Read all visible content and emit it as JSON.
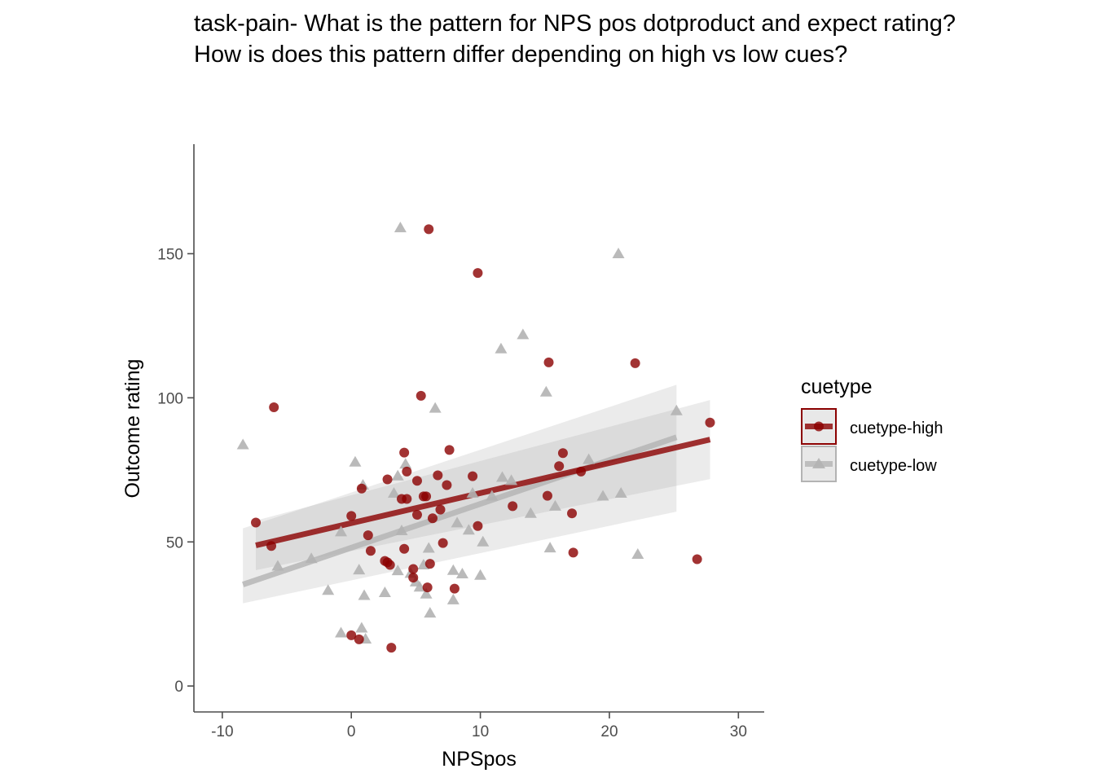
{
  "chart_data": {
    "type": "scatter",
    "title_lines": [
      "task-pain- What is the pattern for NPS pos dotproduct and expect rating?",
      "How is does this pattern differ depending on high vs low cues?"
    ],
    "xlabel": "NPSpos",
    "ylabel": "Outcome rating",
    "xlim": [
      -12.2,
      32.0
    ],
    "ylim": [
      -9.0,
      188.0
    ],
    "xticks": [
      -10,
      0,
      10,
      20,
      30
    ],
    "yticks": [
      0,
      50,
      100,
      150
    ],
    "xtick_labels": [
      "-10",
      "0",
      "10",
      "20",
      "30"
    ],
    "ytick_labels": [
      "0",
      "50",
      "100",
      "150"
    ],
    "grid": false,
    "legend": {
      "title": "cuetype",
      "position": "right",
      "entries": [
        "cuetype-high",
        "cuetype-low"
      ]
    },
    "series": [
      {
        "name": "cuetype-high",
        "color": "#8b0000",
        "marker": "circle",
        "points": [
          [
            -7.4,
            56.7
          ],
          [
            -6.2,
            48.6
          ],
          [
            -6.0,
            96.7
          ],
          [
            0.0,
            59.0
          ],
          [
            0.0,
            17.6
          ],
          [
            0.6,
            16.2
          ],
          [
            0.8,
            68.5
          ],
          [
            1.3,
            52.3
          ],
          [
            1.5,
            46.9
          ],
          [
            2.6,
            43.4
          ],
          [
            2.8,
            42.9
          ],
          [
            2.8,
            71.7
          ],
          [
            3.0,
            42.0
          ],
          [
            3.1,
            13.3
          ],
          [
            3.9,
            64.9
          ],
          [
            4.1,
            47.6
          ],
          [
            4.1,
            81.0
          ],
          [
            4.3,
            74.4
          ],
          [
            4.3,
            64.9
          ],
          [
            4.8,
            40.6
          ],
          [
            4.8,
            37.6
          ],
          [
            5.1,
            59.4
          ],
          [
            5.1,
            71.2
          ],
          [
            5.4,
            100.7
          ],
          [
            5.6,
            65.8
          ],
          [
            5.8,
            65.8
          ],
          [
            5.9,
            34.2
          ],
          [
            6.0,
            158.5
          ],
          [
            6.1,
            42.4
          ],
          [
            6.3,
            58.2
          ],
          [
            6.7,
            73.1
          ],
          [
            6.9,
            61.2
          ],
          [
            7.1,
            49.6
          ],
          [
            7.4,
            69.7
          ],
          [
            7.6,
            81.9
          ],
          [
            8.0,
            33.8
          ],
          [
            9.4,
            72.8
          ],
          [
            9.8,
            55.5
          ],
          [
            9.8,
            143.3
          ],
          [
            12.5,
            62.4
          ],
          [
            15.2,
            66.0
          ],
          [
            15.3,
            112.3
          ],
          [
            16.1,
            76.3
          ],
          [
            16.4,
            80.8
          ],
          [
            17.1,
            59.9
          ],
          [
            17.2,
            46.3
          ],
          [
            17.8,
            74.4
          ],
          [
            22.0,
            112.0
          ],
          [
            26.8,
            44.0
          ],
          [
            27.8,
            91.4
          ]
        ],
        "trend": {
          "x": [
            -7.4,
            27.8
          ],
          "y": [
            48.8,
            85.5
          ]
        },
        "ribbon": {
          "x": [
            -7.4,
            27.8
          ],
          "lower": [
            40.2,
            71.8
          ],
          "upper": [
            57.4,
            99.2
          ]
        }
      },
      {
        "name": "cuetype-low",
        "color": "#b3b3b3",
        "marker": "triangle",
        "points": [
          [
            -8.4,
            83.7
          ],
          [
            -5.7,
            41.6
          ],
          [
            -3.1,
            44.2
          ],
          [
            -1.8,
            33.2
          ],
          [
            -0.8,
            53.5
          ],
          [
            -0.8,
            18.4
          ],
          [
            0.3,
            77.7
          ],
          [
            0.6,
            40.3
          ],
          [
            0.8,
            20.1
          ],
          [
            0.9,
            69.7
          ],
          [
            1.0,
            31.4
          ],
          [
            1.1,
            16.3
          ],
          [
            2.6,
            32.4
          ],
          [
            3.3,
            66.9
          ],
          [
            3.6,
            72.9
          ],
          [
            3.6,
            40.0
          ],
          [
            3.8,
            159.0
          ],
          [
            3.9,
            53.9
          ],
          [
            4.2,
            77.0
          ],
          [
            4.6,
            39.1
          ],
          [
            5.0,
            36.1
          ],
          [
            5.3,
            34.3
          ],
          [
            5.6,
            42.0
          ],
          [
            5.8,
            31.9
          ],
          [
            6.0,
            47.8
          ],
          [
            6.1,
            25.3
          ],
          [
            6.5,
            96.4
          ],
          [
            7.9,
            40.1
          ],
          [
            7.9,
            29.9
          ],
          [
            8.2,
            56.6
          ],
          [
            8.6,
            38.9
          ],
          [
            9.1,
            54.1
          ],
          [
            9.4,
            66.9
          ],
          [
            10.0,
            38.4
          ],
          [
            10.2,
            50.0
          ],
          [
            10.9,
            65.9
          ],
          [
            11.6,
            117.0
          ],
          [
            11.7,
            72.4
          ],
          [
            12.4,
            71.3
          ],
          [
            13.3,
            121.9
          ],
          [
            13.9,
            59.9
          ],
          [
            15.1,
            102.0
          ],
          [
            15.4,
            47.9
          ],
          [
            15.8,
            62.4
          ],
          [
            18.4,
            78.6
          ],
          [
            19.5,
            65.9
          ],
          [
            20.7,
            150.0
          ],
          [
            20.9,
            66.9
          ],
          [
            22.2,
            45.7
          ],
          [
            25.2,
            95.5
          ]
        ],
        "trend": {
          "x": [
            -8.4,
            25.2
          ],
          "y": [
            35.2,
            86.3
          ]
        },
        "ribbon": {
          "x": [
            -8.4,
            25.2
          ],
          "lower": [
            28.7,
            60.5
          ],
          "upper": [
            54.7,
            104.5
          ]
        }
      }
    ]
  }
}
